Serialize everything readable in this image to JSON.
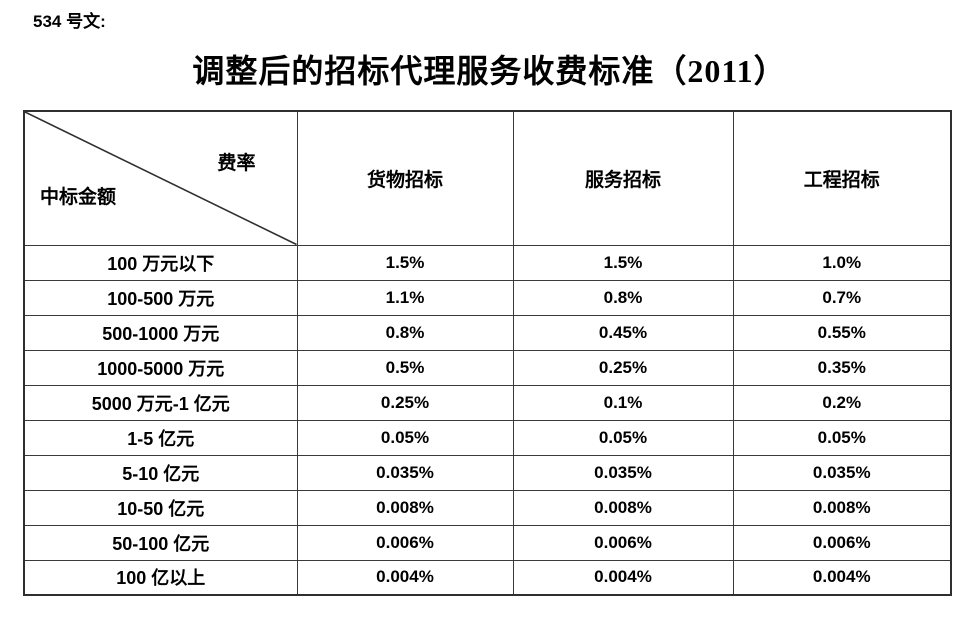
{
  "doc_label": "534 号文:",
  "title": "调整后的招标代理服务收费标准（2011）",
  "table": {
    "corner": {
      "top_right": "费率",
      "bottom_left": "中标金额"
    },
    "columns": [
      "货物招标",
      "服务招标",
      "工程招标"
    ],
    "rows": [
      {
        "amount": "100 万元以下",
        "values": [
          "1.5%",
          "1.5%",
          "1.0%"
        ]
      },
      {
        "amount": "100-500 万元",
        "values": [
          "1.1%",
          "0.8%",
          "0.7%"
        ]
      },
      {
        "amount": "500-1000 万元",
        "values": [
          "0.8%",
          "0.45%",
          "0.55%"
        ]
      },
      {
        "amount": "1000-5000 万元",
        "values": [
          "0.5%",
          "0.25%",
          "0.35%"
        ]
      },
      {
        "amount": "5000 万元-1 亿元",
        "values": [
          "0.25%",
          "0.1%",
          "0.2%"
        ]
      },
      {
        "amount": "1-5 亿元",
        "values": [
          "0.05%",
          "0.05%",
          "0.05%"
        ]
      },
      {
        "amount": "5-10 亿元",
        "values": [
          "0.035%",
          "0.035%",
          "0.035%"
        ]
      },
      {
        "amount": "10-50 亿元",
        "values": [
          "0.008%",
          "0.008%",
          "0.008%"
        ]
      },
      {
        "amount": "50-100 亿元",
        "values": [
          "0.006%",
          "0.006%",
          "0.006%"
        ]
      },
      {
        "amount": "100 亿以上",
        "values": [
          "0.004%",
          "0.004%",
          "0.004%"
        ]
      }
    ]
  },
  "colors": {
    "background": "#ffffff",
    "text": "#000000",
    "border_inner": "#3a3a3a",
    "border_outer": "#2f2f2f"
  }
}
